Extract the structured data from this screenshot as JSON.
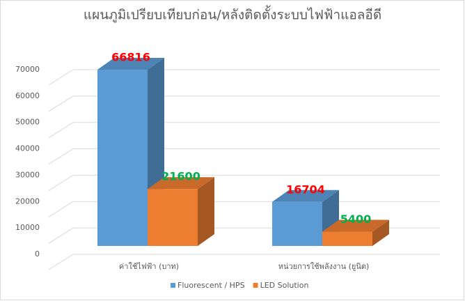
{
  "chart_data": {
    "type": "bar3d",
    "title": "แผนภูมิเปรียบเทียบก่อน/หลังติดตั้งระบบไฟฟ้าแอลอีดี",
    "categories": [
      "ค่าใช้ไฟฟ้า (บาท)",
      "หน่วยการใช้พลังงาน (ยูนิต)"
    ],
    "series": [
      {
        "name": "Fluorescent / HPS",
        "color": "#5b9bd5",
        "label_color": "#ff0000",
        "values": [
          66816,
          16704
        ]
      },
      {
        "name": "LED Solution",
        "color": "#ed7d31",
        "label_color": "#00b050",
        "values": [
          21600,
          5400
        ]
      }
    ],
    "ylim": [
      0,
      70000
    ],
    "yticks": [
      0,
      10000,
      20000,
      30000,
      40000,
      50000,
      60000,
      70000
    ],
    "grid": true,
    "legend": "bottom"
  }
}
